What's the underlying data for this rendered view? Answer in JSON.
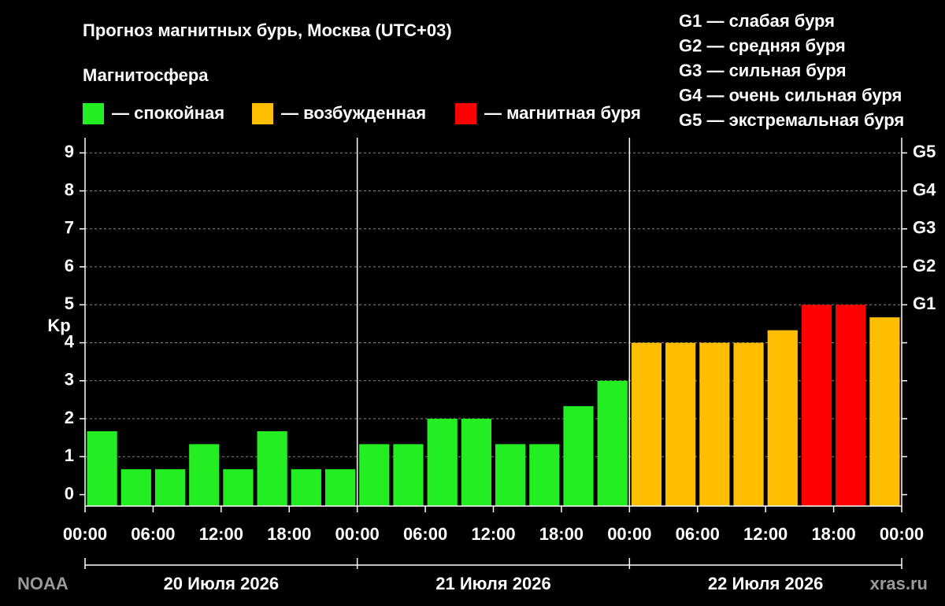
{
  "chart_data": {
    "type": "bar",
    "title": "Прогноз магнитных бурь, Москва (UTC+03)",
    "legend_title": "Магнитосфера",
    "legend": [
      {
        "label": "— спокойная",
        "color": "#22ee22"
      },
      {
        "label": "— возбужденная",
        "color": "#ffbf00"
      },
      {
        "label": "— магнитная буря",
        "color": "#ff0000"
      }
    ],
    "storm_levels": [
      "G1 — слабая буря",
      "G2 — средняя буря",
      "G3 — сильная буря",
      "G4 — очень сильная буря",
      "G5 — экстремальная буря"
    ],
    "y_label": "Kp",
    "values": [
      1.67,
      0.67,
      0.67,
      1.33,
      0.67,
      1.67,
      0.67,
      0.67,
      1.33,
      1.33,
      2,
      2,
      1.33,
      1.33,
      2.33,
      3,
      4,
      4,
      4,
      4,
      4.33,
      5,
      5,
      4.67
    ],
    "colors": [
      "#22ee22",
      "#22ee22",
      "#22ee22",
      "#22ee22",
      "#22ee22",
      "#22ee22",
      "#22ee22",
      "#22ee22",
      "#22ee22",
      "#22ee22",
      "#22ee22",
      "#22ee22",
      "#22ee22",
      "#22ee22",
      "#22ee22",
      "#22ee22",
      "#ffbf00",
      "#ffbf00",
      "#ffbf00",
      "#ffbf00",
      "#ffbf00",
      "#ff0000",
      "#ff0000",
      "#ffbf00"
    ],
    "ylim": [
      -0.3,
      9.4
    ],
    "yticks": [
      0,
      1,
      2,
      3,
      4,
      5,
      6,
      7,
      8,
      9
    ],
    "y2lim": [
      -0.3,
      9.4
    ],
    "y2ticks": [
      {
        "value": 5,
        "label": "G1"
      },
      {
        "value": 6,
        "label": "G2"
      },
      {
        "value": 7,
        "label": "G3"
      },
      {
        "value": 8,
        "label": "G4"
      },
      {
        "value": 9,
        "label": "G5"
      }
    ],
    "xtick_labels": [
      "00:00",
      "06:00",
      "12:00",
      "18:00",
      "00:00",
      "06:00",
      "12:00",
      "18:00",
      "00:00",
      "06:00",
      "12:00",
      "18:00",
      "00:00"
    ],
    "days": [
      "20 Июля 2026",
      "21 Июля 2026",
      "22 Июля 2026"
    ],
    "grid": true,
    "source": "NOAA",
    "site": "xras.ru"
  }
}
